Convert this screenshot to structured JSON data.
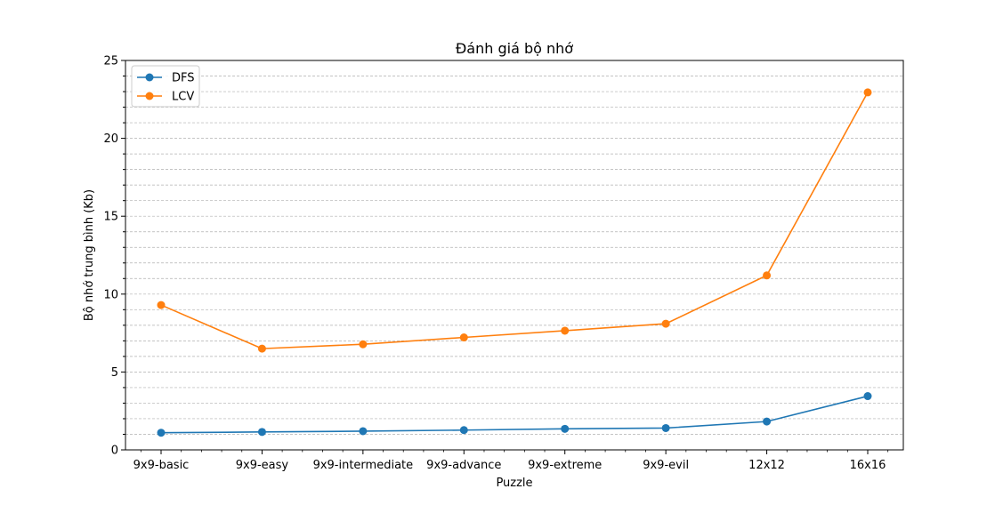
{
  "chart_data": {
    "type": "line",
    "title": "Đánh giá bộ nhớ",
    "xlabel": "Puzzle",
    "ylabel": "Bộ nhớ trung bình (Kb)",
    "categories": [
      "9x9-basic",
      "9x9-easy",
      "9x9-intermediate",
      "9x9-advance",
      "9x9-extreme",
      "9x9-evil",
      "12x12",
      "16x16"
    ],
    "ylim": [
      0,
      25
    ],
    "yticks": [
      0,
      5,
      10,
      15,
      20,
      25
    ],
    "grid": "horizontal dashed, major and minor",
    "legend": "top-left",
    "series": [
      {
        "name": "DFS",
        "color": "#1f77b4",
        "values": [
          1.1,
          1.15,
          1.2,
          1.27,
          1.35,
          1.4,
          1.82,
          3.45
        ]
      },
      {
        "name": "LCV",
        "color": "#ff7f0e",
        "values": [
          9.3,
          6.5,
          6.78,
          7.22,
          7.65,
          8.1,
          11.2,
          22.95
        ]
      }
    ]
  }
}
